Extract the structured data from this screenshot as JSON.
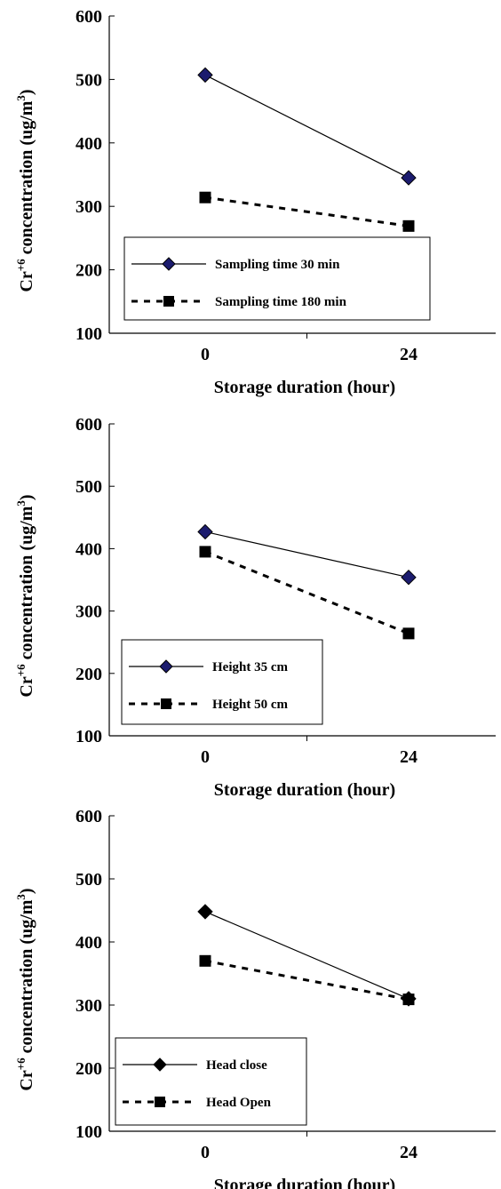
{
  "chart_data": [
    {
      "type": "line",
      "categories": [
        "0",
        "24"
      ],
      "xlabel": "Storage duration (hour)",
      "ylabel": {
        "prefix": "Cr",
        "sup": "+6",
        "middle": " concentration (ug/m",
        "sup2": "3",
        "suffix": ")"
      },
      "ylim": [
        100,
        600
      ],
      "yticks": [
        "100",
        "200",
        "300",
        "400",
        "500",
        "600"
      ],
      "grid": false,
      "legend_position": "bottom-left",
      "series": [
        {
          "name": "Sampling time 30 min",
          "values": [
            507,
            345
          ],
          "line_style": "solid",
          "marker": "diamond",
          "marker_color": "#1c1c6e"
        },
        {
          "name": "Sampling time 180 min",
          "values": [
            314,
            269
          ],
          "line_style": "dashed",
          "marker": "square",
          "marker_color": "#000000"
        }
      ]
    },
    {
      "type": "line",
      "categories": [
        "0",
        "24"
      ],
      "xlabel": "Storage duration (hour)",
      "ylabel": {
        "prefix": "Cr",
        "sup": "+6",
        "middle": " concentration (ug/m",
        "sup2": "3",
        "suffix": ")"
      },
      "ylim": [
        100,
        600
      ],
      "yticks": [
        "100",
        "200",
        "300",
        "400",
        "500",
        "600"
      ],
      "grid": false,
      "legend_position": "bottom-left",
      "series": [
        {
          "name": "Height 35 cm",
          "values": [
            427,
            354
          ],
          "line_style": "solid",
          "marker": "diamond",
          "marker_color": "#1c1c6e"
        },
        {
          "name": "Height 50 cm",
          "values": [
            395,
            264
          ],
          "line_style": "dashed",
          "marker": "square",
          "marker_color": "#000000"
        }
      ]
    },
    {
      "type": "line",
      "categories": [
        "0",
        "24"
      ],
      "xlabel": "Storage duration (hour)",
      "ylabel": {
        "prefix": "Cr",
        "sup": "+6",
        "middle": " concentration (ug/m",
        "sup2": "3",
        "suffix": ")"
      },
      "ylim": [
        100,
        600
      ],
      "yticks": [
        "100",
        "200",
        "300",
        "400",
        "500",
        "600"
      ],
      "grid": false,
      "legend_position": "bottom-left",
      "series": [
        {
          "name": "Head close",
          "values": [
            448,
            310
          ],
          "line_style": "solid",
          "marker": "diamond",
          "marker_color": "#000000"
        },
        {
          "name": "Head Open",
          "values": [
            370,
            309
          ],
          "line_style": "dashed",
          "marker": "square",
          "marker_color": "#000000"
        }
      ]
    }
  ]
}
